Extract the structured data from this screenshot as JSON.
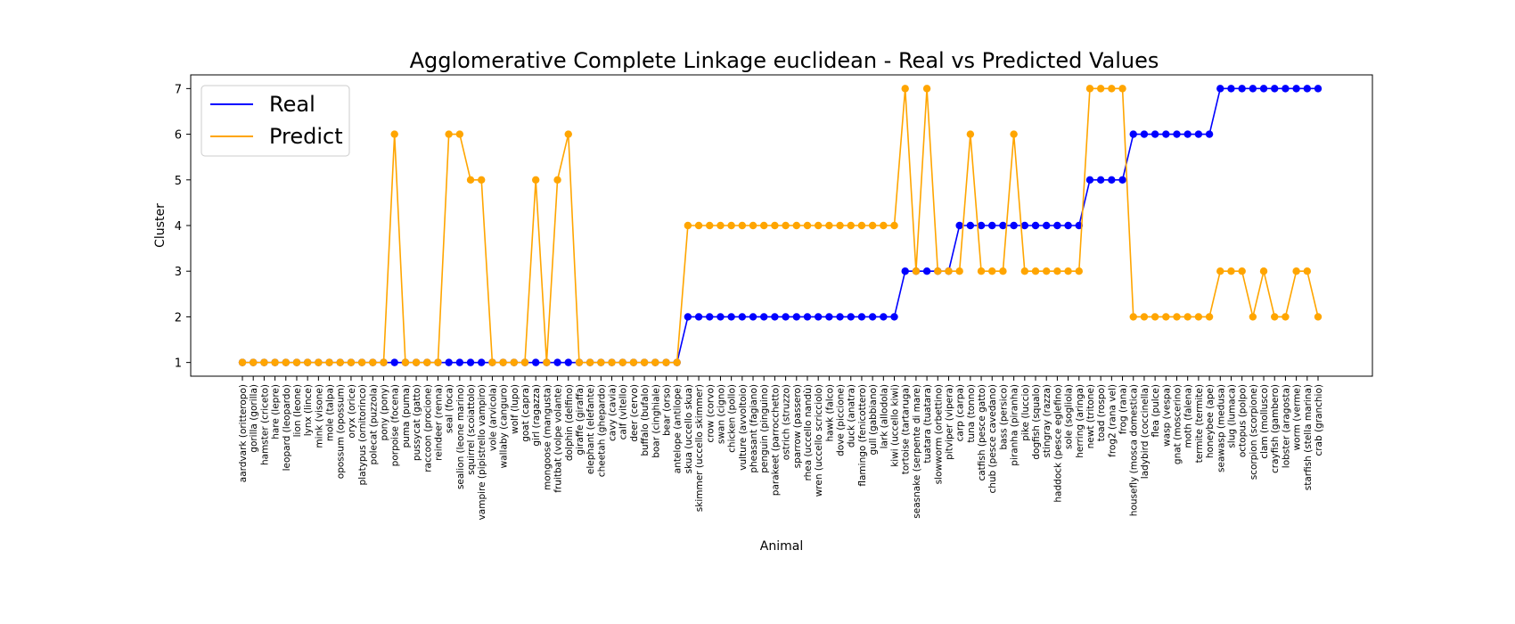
{
  "chart_data": {
    "type": "line",
    "title": "Agglomerative Complete Linkage euclidean - Real vs Predicted Values",
    "xlabel": "Animal",
    "ylabel": "Cluster",
    "ylim": [
      0.7,
      7.3
    ],
    "yticks": [
      1,
      2,
      3,
      4,
      5,
      6,
      7
    ],
    "grid": false,
    "legend_position": "upper-left",
    "colors": {
      "real": "#0000ff",
      "predict": "#ffa500"
    },
    "categories": [
      "aardvark (oritteropo)",
      "gorilla (gorilla)",
      "hamster (criceto)",
      "hare (lepre)",
      "leopard (leopardo)",
      "lion (leone)",
      "lynx (lince)",
      "mink (visone)",
      "mole (talpa)",
      "opossum (opossum)",
      "oryx (orice)",
      "platypus (ornitorinco)",
      "polecat (puzzola)",
      "pony (pony)",
      "porpoise (focena)",
      "puma (puma)",
      "pussycat (gatto)",
      "raccoon (procione)",
      "reindeer (renna)",
      "seal (foca)",
      "sealion (leone marino)",
      "squirrel (scoiattolo)",
      "vampire (pipistrello vampiro)",
      "vole (arvicola)",
      "wallaby (canguro)",
      "wolf (lupo)",
      "goat (capra)",
      "girl (ragazza)",
      "mongoose (mangusta)",
      "fruitbat (volpe volante)",
      "dolphin (delfino)",
      "giraffe (giraffa)",
      "elephant (elefante)",
      "cheetah (ghepardo)",
      "cavy (cavia)",
      "calf (vitello)",
      "deer (cervo)",
      "buffalo (bufalo)",
      "boar (cinghiale)",
      "bear (orso)",
      "antelope (antilope)",
      "skua (uccello skua)",
      "skimmer (uccello skimmer)",
      "crow (corvo)",
      "swan (cigno)",
      "chicken (pollo)",
      "vulture (avvoltoio)",
      "pheasant (fagiano)",
      "penguin (pinguino)",
      "parakeet (parrocchetto)",
      "ostrich (struzzo)",
      "sparrow (passero)",
      "rhea (uccello nandù)",
      "wren (uccello scricciolo)",
      "hawk (falco)",
      "dove (piccione)",
      "duck (anatra)",
      "flamingo (fenicottero)",
      "gull (gabbiano)",
      "lark (allodola)",
      "kiwi (uccello kiwi)",
      "tortoise (tartaruga)",
      "seasnake (serpente di mare)",
      "tuatara (tuatara)",
      "slowworm (orbettino)",
      "pitviper (vipera)",
      "carp (carpa)",
      "tuna (tonno)",
      "catfish (pesce gatto)",
      "chub (pesce cavedano)",
      "bass (persico)",
      "piranha (piranha)",
      "pike (luccio)",
      "dogfish (squalo)",
      "stingray (razza)",
      "haddock (pesce eglefino)",
      "sole (sogliola)",
      "herring (aringa)",
      "newt (tritone)",
      "toad (rospo)",
      "frog2 (rana vel)",
      "frog (rana)",
      "housefly (mosca domestica)",
      "ladybird (coccinella)",
      "flea (pulce)",
      "wasp (vespa)",
      "gnat (moscerino)",
      "moth (falena)",
      "termite (termite)",
      "honeybee (ape)",
      "seawasp (medusa)",
      "slug (lumaca)",
      "octopus (polpo)",
      "scorpion (scorpione)",
      "clam (mollusco)",
      "crayfish (gambero)",
      "lobster (aragosta)",
      "worm (verme)",
      "starfish (stella marina)",
      "crab (granchio)"
    ],
    "series": [
      {
        "name": "Real",
        "values": [
          1,
          1,
          1,
          1,
          1,
          1,
          1,
          1,
          1,
          1,
          1,
          1,
          1,
          1,
          1,
          1,
          1,
          1,
          1,
          1,
          1,
          1,
          1,
          1,
          1,
          1,
          1,
          1,
          1,
          1,
          1,
          1,
          1,
          1,
          1,
          1,
          1,
          1,
          1,
          1,
          1,
          2,
          2,
          2,
          2,
          2,
          2,
          2,
          2,
          2,
          2,
          2,
          2,
          2,
          2,
          2,
          2,
          2,
          2,
          2,
          2,
          3,
          3,
          3,
          3,
          3,
          4,
          4,
          4,
          4,
          4,
          4,
          4,
          4,
          4,
          4,
          4,
          4,
          5,
          5,
          5,
          5,
          6,
          6,
          6,
          6,
          6,
          6,
          6,
          6,
          7,
          7,
          7,
          7,
          7,
          7,
          7,
          7,
          7,
          7
        ]
      },
      {
        "name": "Predict",
        "values": [
          1,
          1,
          1,
          1,
          1,
          1,
          1,
          1,
          1,
          1,
          1,
          1,
          1,
          1,
          6,
          1,
          1,
          1,
          1,
          6,
          6,
          5,
          5,
          1,
          1,
          1,
          1,
          5,
          1,
          5,
          6,
          1,
          1,
          1,
          1,
          1,
          1,
          1,
          1,
          1,
          1,
          4,
          4,
          4,
          4,
          4,
          4,
          4,
          4,
          4,
          4,
          4,
          4,
          4,
          4,
          4,
          4,
          4,
          4,
          4,
          4,
          7,
          3,
          7,
          3,
          3,
          3,
          6,
          3,
          3,
          3,
          6,
          3,
          3,
          3,
          3,
          3,
          3,
          7,
          7,
          7,
          7,
          2,
          2,
          2,
          2,
          2,
          2,
          2,
          2,
          3,
          3,
          3,
          2,
          3,
          2,
          2,
          3,
          3,
          2
        ]
      }
    ]
  }
}
